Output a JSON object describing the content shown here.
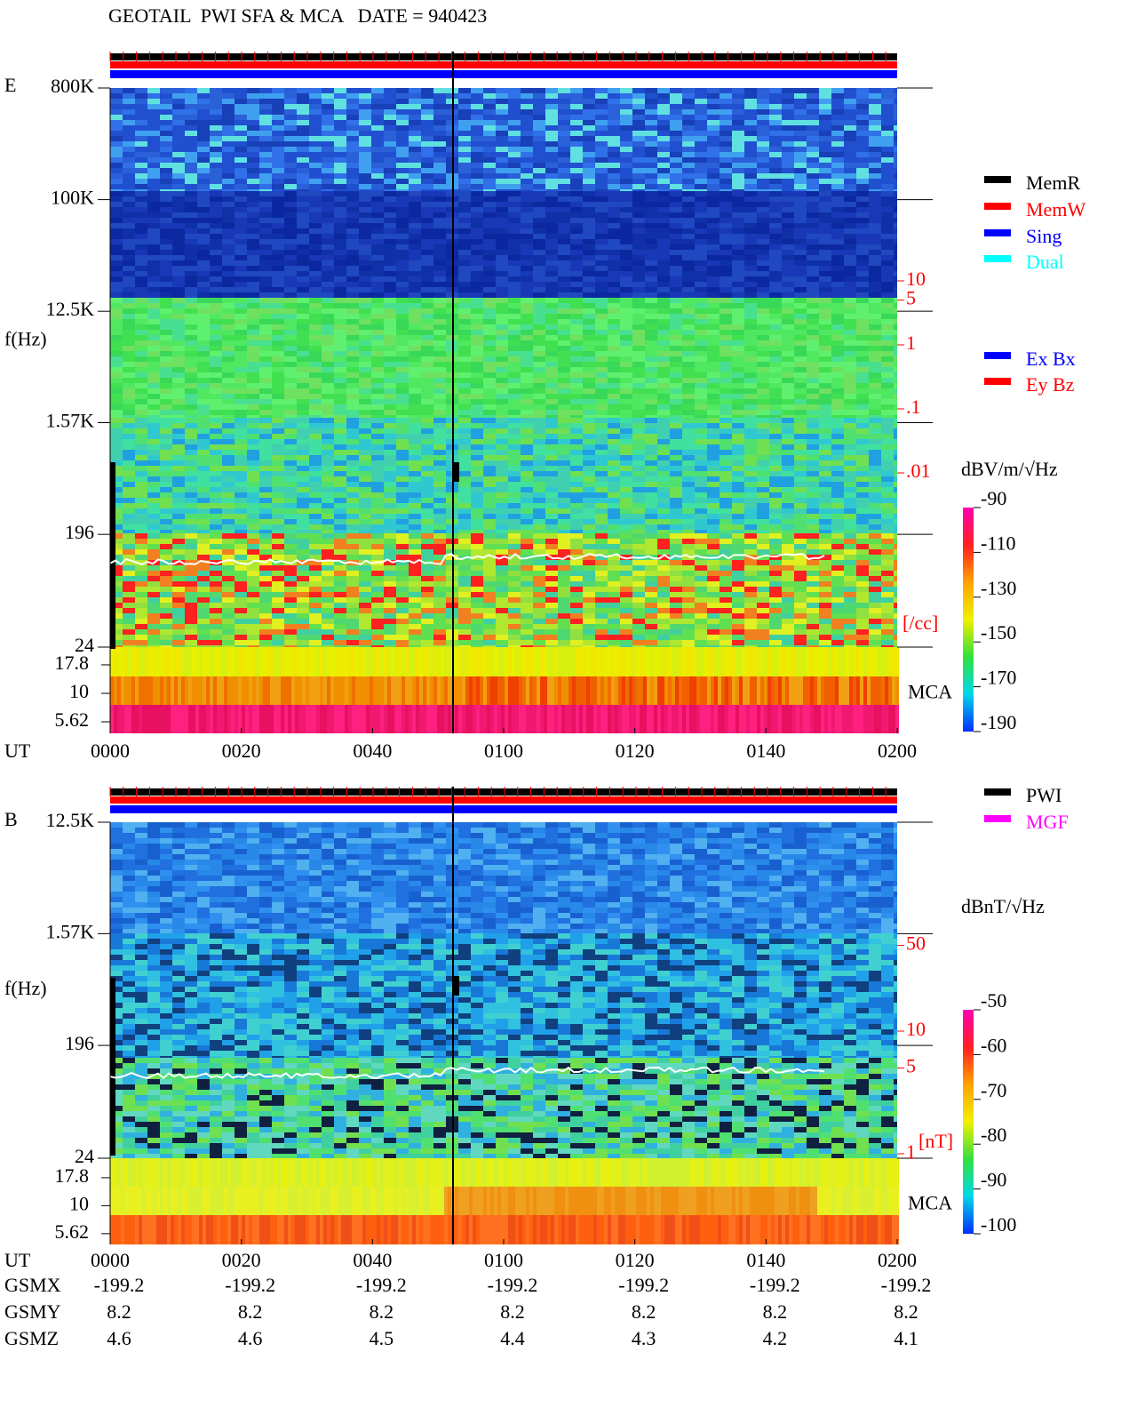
{
  "title": "GEOTAIL  PWI SFA & MCA   DATE = 940423",
  "chart_data": [
    {
      "type": "spectrogram",
      "panel_label": "E",
      "y_label": "f(Hz)",
      "x_label": "UT",
      "categories": [
        "0000",
        "0020",
        "0040",
        "0100",
        "0120",
        "0140",
        "0200"
      ],
      "log_y": true,
      "ylim": [
        24,
        800000
      ],
      "yticks": [
        {
          "value": 800000,
          "label": "800K"
        },
        {
          "value": 100000,
          "label": "100K"
        },
        {
          "value": 12500,
          "label": "12.5K"
        },
        {
          "value": 1570,
          "label": "1.57K"
        },
        196,
        24
      ],
      "mca_label": "MCA",
      "mcalim": [
        4.45,
        25.5
      ],
      "mca_ticks": [
        17.8,
        10,
        5.62
      ],
      "y2_label": "[/cc]",
      "y2lim": [
        1.9e-05,
        10300
      ],
      "y2ticks": [
        10,
        5,
        1,
        {
          "value": 0.1,
          "label": ".1"
        },
        {
          "value": 0.01,
          "label": ".01"
        }
      ],
      "colorbar": {
        "label": "dBV/m/√Hz",
        "clim": [
          -190,
          -90
        ],
        "ticks": [
          -90,
          -110,
          -130,
          -150,
          -170,
          -190
        ]
      },
      "legends": [
        {
          "items": [
            {
              "name": "MemR",
              "color": "#000000"
            },
            {
              "name": "MemW",
              "color": "#ff0000"
            },
            {
              "name": "Sing",
              "color": "#0000ff"
            },
            {
              "name": "Dual",
              "color": "#00ffff"
            }
          ]
        },
        {
          "items": [
            {
              "name": "Ex Bx",
              "color": "#0000ff"
            },
            {
              "name": "Ey Bz",
              "color": "#ff0000"
            }
          ]
        }
      ]
    },
    {
      "type": "spectrogram",
      "panel_label": "B",
      "y_label": "f(Hz)",
      "x_label": "UT",
      "categories": [
        "0000",
        "0020",
        "0040",
        "0100",
        "0120",
        "0140",
        "0200"
      ],
      "log_y": true,
      "ylim": [
        24,
        12500
      ],
      "yticks": [
        {
          "value": 12500,
          "label": "12.5K"
        },
        {
          "value": 1570,
          "label": "1.57K"
        },
        196,
        24
      ],
      "mca_label": "MCA",
      "mcalim": [
        4.5,
        26.6
      ],
      "mca_ticks": [
        17.8,
        10,
        5.62
      ],
      "y2_label": "[nT]",
      "y2lim": [
        0.92,
        505
      ],
      "y2ticks": [
        50,
        10,
        5,
        1
      ],
      "colorbar": {
        "label": "dBnT/√Hz",
        "clim": [
          -100,
          -50
        ],
        "ticks": [
          -50,
          -60,
          -70,
          -80,
          -90,
          -100
        ]
      },
      "legends": [
        {
          "items": [
            {
              "name": "PWI",
              "color": "#000000"
            },
            {
              "name": "MGF",
              "color": "#ff00ff"
            }
          ]
        }
      ]
    }
  ],
  "ephemeris": {
    "rows": [
      {
        "label": "GSMX",
        "values": [
          -199.2,
          -199.2,
          -199.2,
          -199.2,
          -199.2,
          -199.2,
          -199.2
        ]
      },
      {
        "label": "GSMY",
        "values": [
          8.2,
          8.2,
          8.2,
          8.2,
          8.2,
          8.2,
          8.2
        ]
      },
      {
        "label": "GSMZ",
        "values": [
          4.6,
          4.6,
          4.5,
          4.4,
          4.3,
          4.2,
          4.1
        ]
      }
    ]
  }
}
